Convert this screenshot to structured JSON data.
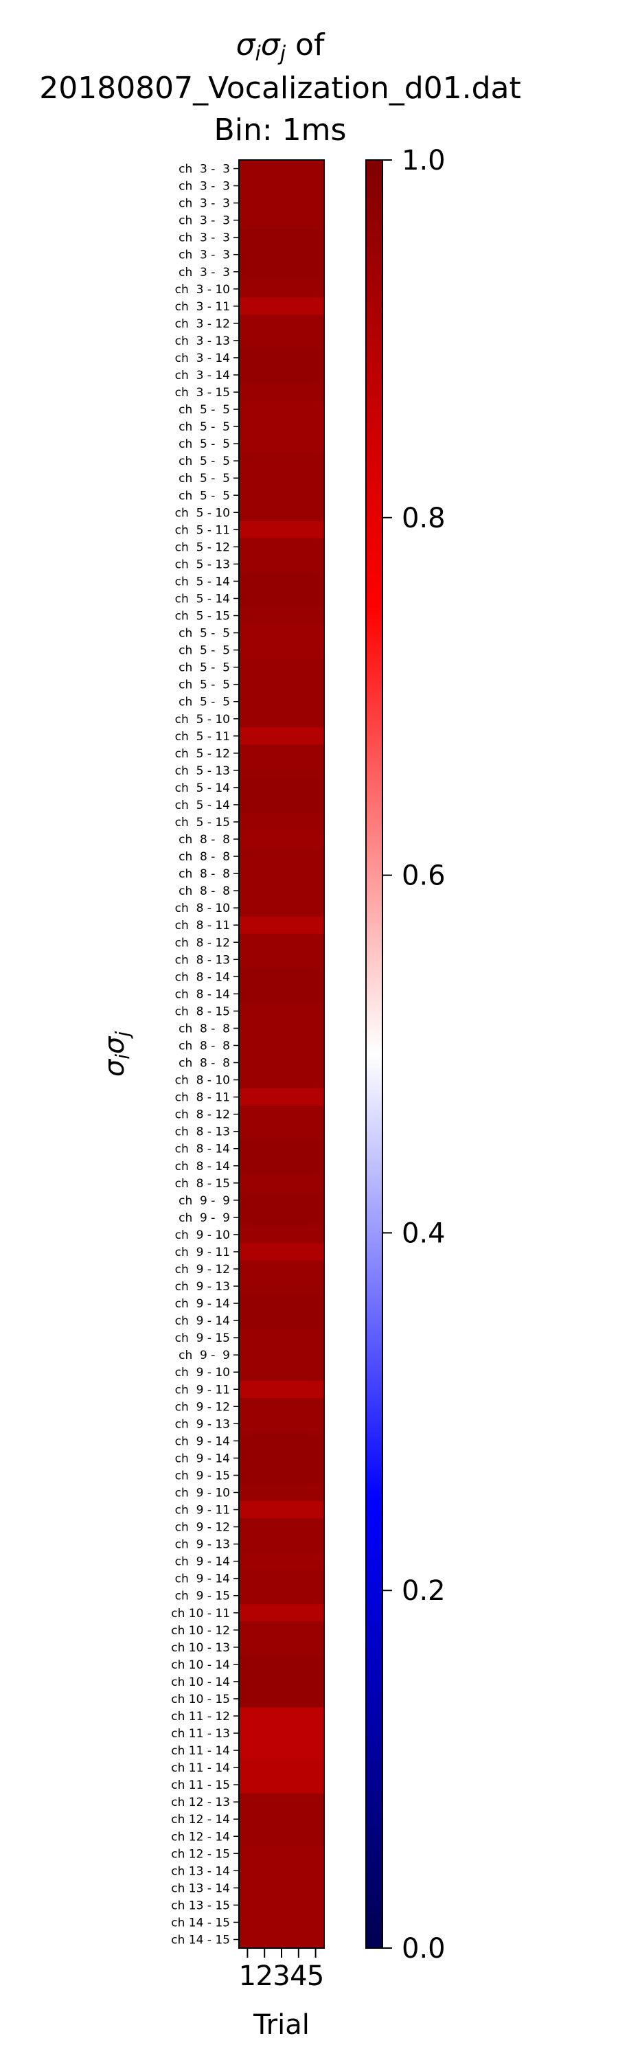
{
  "chart_data": {
    "type": "heatmap",
    "title_lines": [
      "σiσj of",
      "20180807_Vocalization_d01.dat",
      "Bin: 1ms"
    ],
    "title_symbol_1": "σ",
    "title_sub_1": "i",
    "title_symbol_2": "σ",
    "title_sub_2": "j",
    "title_suffix": " of",
    "title_file": "20180807_Vocalization_d01.dat",
    "title_bin": "Bin: 1ms",
    "xlabel": "Trial",
    "ylabel": "σiσj",
    "x_ticks": [
      "1",
      "2",
      "3",
      "4",
      "5"
    ],
    "colorbar": {
      "min": 0.0,
      "max": 1.0,
      "ticks": [
        "0.0",
        "0.2",
        "0.4",
        "0.6",
        "0.8",
        "1.0"
      ],
      "colormap": [
        "#000050",
        "#0000ff",
        "#ffffff",
        "#ff0000",
        "#800000"
      ]
    },
    "rows": [
      {
        "label": "ch  3 -  3",
        "value": 0.95
      },
      {
        "label": "ch  3 -  3",
        "value": 0.95
      },
      {
        "label": "ch  3 -  3",
        "value": 0.95
      },
      {
        "label": "ch  3 -  3",
        "value": 0.95
      },
      {
        "label": "ch  3 -  3",
        "value": 0.96
      },
      {
        "label": "ch  3 -  3",
        "value": 0.96
      },
      {
        "label": "ch  3 -  3",
        "value": 0.96
      },
      {
        "label": "ch  3 - 10",
        "value": 0.95
      },
      {
        "label": "ch  3 - 11",
        "value": 0.9
      },
      {
        "label": "ch  3 - 12",
        "value": 0.95
      },
      {
        "label": "ch  3 - 13",
        "value": 0.95
      },
      {
        "label": "ch  3 - 14",
        "value": 0.96
      },
      {
        "label": "ch  3 - 14",
        "value": 0.96
      },
      {
        "label": "ch  3 - 15",
        "value": 0.95
      },
      {
        "label": "ch  5 -  5",
        "value": 0.94
      },
      {
        "label": "ch  5 -  5",
        "value": 0.94
      },
      {
        "label": "ch  5 -  5",
        "value": 0.94
      },
      {
        "label": "ch  5 -  5",
        "value": 0.95
      },
      {
        "label": "ch  5 -  5",
        "value": 0.95
      },
      {
        "label": "ch  5 -  5",
        "value": 0.95
      },
      {
        "label": "ch  5 - 10",
        "value": 0.95
      },
      {
        "label": "ch  5 - 11",
        "value": 0.9
      },
      {
        "label": "ch  5 - 12",
        "value": 0.95
      },
      {
        "label": "ch  5 - 13",
        "value": 0.95
      },
      {
        "label": "ch  5 - 14",
        "value": 0.96
      },
      {
        "label": "ch  5 - 14",
        "value": 0.96
      },
      {
        "label": "ch  5 - 15",
        "value": 0.95
      },
      {
        "label": "ch  5 -  5",
        "value": 0.94
      },
      {
        "label": "ch  5 -  5",
        "value": 0.94
      },
      {
        "label": "ch  5 -  5",
        "value": 0.95
      },
      {
        "label": "ch  5 -  5",
        "value": 0.95
      },
      {
        "label": "ch  5 -  5",
        "value": 0.95
      },
      {
        "label": "ch  5 - 10",
        "value": 0.95
      },
      {
        "label": "ch  5 - 11",
        "value": 0.9
      },
      {
        "label": "ch  5 - 12",
        "value": 0.95
      },
      {
        "label": "ch  5 - 13",
        "value": 0.95
      },
      {
        "label": "ch  5 - 14",
        "value": 0.96
      },
      {
        "label": "ch  5 - 14",
        "value": 0.96
      },
      {
        "label": "ch  5 - 15",
        "value": 0.95
      },
      {
        "label": "ch  8 -  8",
        "value": 0.94
      },
      {
        "label": "ch  8 -  8",
        "value": 0.95
      },
      {
        "label": "ch  8 -  8",
        "value": 0.95
      },
      {
        "label": "ch  8 -  8",
        "value": 0.95
      },
      {
        "label": "ch  8 - 10",
        "value": 0.95
      },
      {
        "label": "ch  8 - 11",
        "value": 0.9
      },
      {
        "label": "ch  8 - 12",
        "value": 0.95
      },
      {
        "label": "ch  8 - 13",
        "value": 0.95
      },
      {
        "label": "ch  8 - 14",
        "value": 0.96
      },
      {
        "label": "ch  8 - 14",
        "value": 0.96
      },
      {
        "label": "ch  8 - 15",
        "value": 0.95
      },
      {
        "label": "ch  8 -  8",
        "value": 0.95
      },
      {
        "label": "ch  8 -  8",
        "value": 0.95
      },
      {
        "label": "ch  8 -  8",
        "value": 0.95
      },
      {
        "label": "ch  8 - 10",
        "value": 0.95
      },
      {
        "label": "ch  8 - 11",
        "value": 0.9
      },
      {
        "label": "ch  8 - 12",
        "value": 0.95
      },
      {
        "label": "ch  8 - 13",
        "value": 0.95
      },
      {
        "label": "ch  8 - 14",
        "value": 0.96
      },
      {
        "label": "ch  8 - 14",
        "value": 0.96
      },
      {
        "label": "ch  8 - 15",
        "value": 0.95
      },
      {
        "label": "ch  9 -  9",
        "value": 0.96
      },
      {
        "label": "ch  9 -  9",
        "value": 0.96
      },
      {
        "label": "ch  9 - 10",
        "value": 0.95
      },
      {
        "label": "ch  9 - 11",
        "value": 0.91
      },
      {
        "label": "ch  9 - 12",
        "value": 0.95
      },
      {
        "label": "ch  9 - 13",
        "value": 0.95
      },
      {
        "label": "ch  9 - 14",
        "value": 0.96
      },
      {
        "label": "ch  9 - 14",
        "value": 0.96
      },
      {
        "label": "ch  9 - 15",
        "value": 0.95
      },
      {
        "label": "ch  9 -  9",
        "value": 0.95
      },
      {
        "label": "ch  9 - 10",
        "value": 0.95
      },
      {
        "label": "ch  9 - 11",
        "value": 0.9
      },
      {
        "label": "ch  9 - 12",
        "value": 0.95
      },
      {
        "label": "ch  9 - 13",
        "value": 0.95
      },
      {
        "label": "ch  9 - 14",
        "value": 0.96
      },
      {
        "label": "ch  9 - 14",
        "value": 0.96
      },
      {
        "label": "ch  9 - 15",
        "value": 0.96
      },
      {
        "label": "ch  9 - 10",
        "value": 0.95
      },
      {
        "label": "ch  9 - 11",
        "value": 0.9
      },
      {
        "label": "ch  9 - 12",
        "value": 0.95
      },
      {
        "label": "ch  9 - 13",
        "value": 0.95
      },
      {
        "label": "ch  9 - 14",
        "value": 0.94
      },
      {
        "label": "ch  9 - 14",
        "value": 0.95
      },
      {
        "label": "ch  9 - 15",
        "value": 0.95
      },
      {
        "label": "ch 10 - 11",
        "value": 0.9
      },
      {
        "label": "ch 10 - 12",
        "value": 0.95
      },
      {
        "label": "ch 10 - 13",
        "value": 0.95
      },
      {
        "label": "ch 10 - 14",
        "value": 0.96
      },
      {
        "label": "ch 10 - 14",
        "value": 0.96
      },
      {
        "label": "ch 10 - 15",
        "value": 0.96
      },
      {
        "label": "ch 11 - 12",
        "value": 0.88
      },
      {
        "label": "ch 11 - 13",
        "value": 0.88
      },
      {
        "label": "ch 11 - 14",
        "value": 0.88
      },
      {
        "label": "ch 11 - 14",
        "value": 0.89
      },
      {
        "label": "ch 11 - 15",
        "value": 0.89
      },
      {
        "label": "ch 12 - 13",
        "value": 0.95
      },
      {
        "label": "ch 12 - 14",
        "value": 0.95
      },
      {
        "label": "ch 12 - 14",
        "value": 0.95
      },
      {
        "label": "ch 12 - 15",
        "value": 0.94
      },
      {
        "label": "ch 13 - 14",
        "value": 0.94
      },
      {
        "label": "ch 13 - 14",
        "value": 0.94
      },
      {
        "label": "ch 13 - 15",
        "value": 0.94
      },
      {
        "label": "ch 14 - 15",
        "value": 0.94
      },
      {
        "label": "ch 14 - 15",
        "value": 0.94
      }
    ]
  }
}
